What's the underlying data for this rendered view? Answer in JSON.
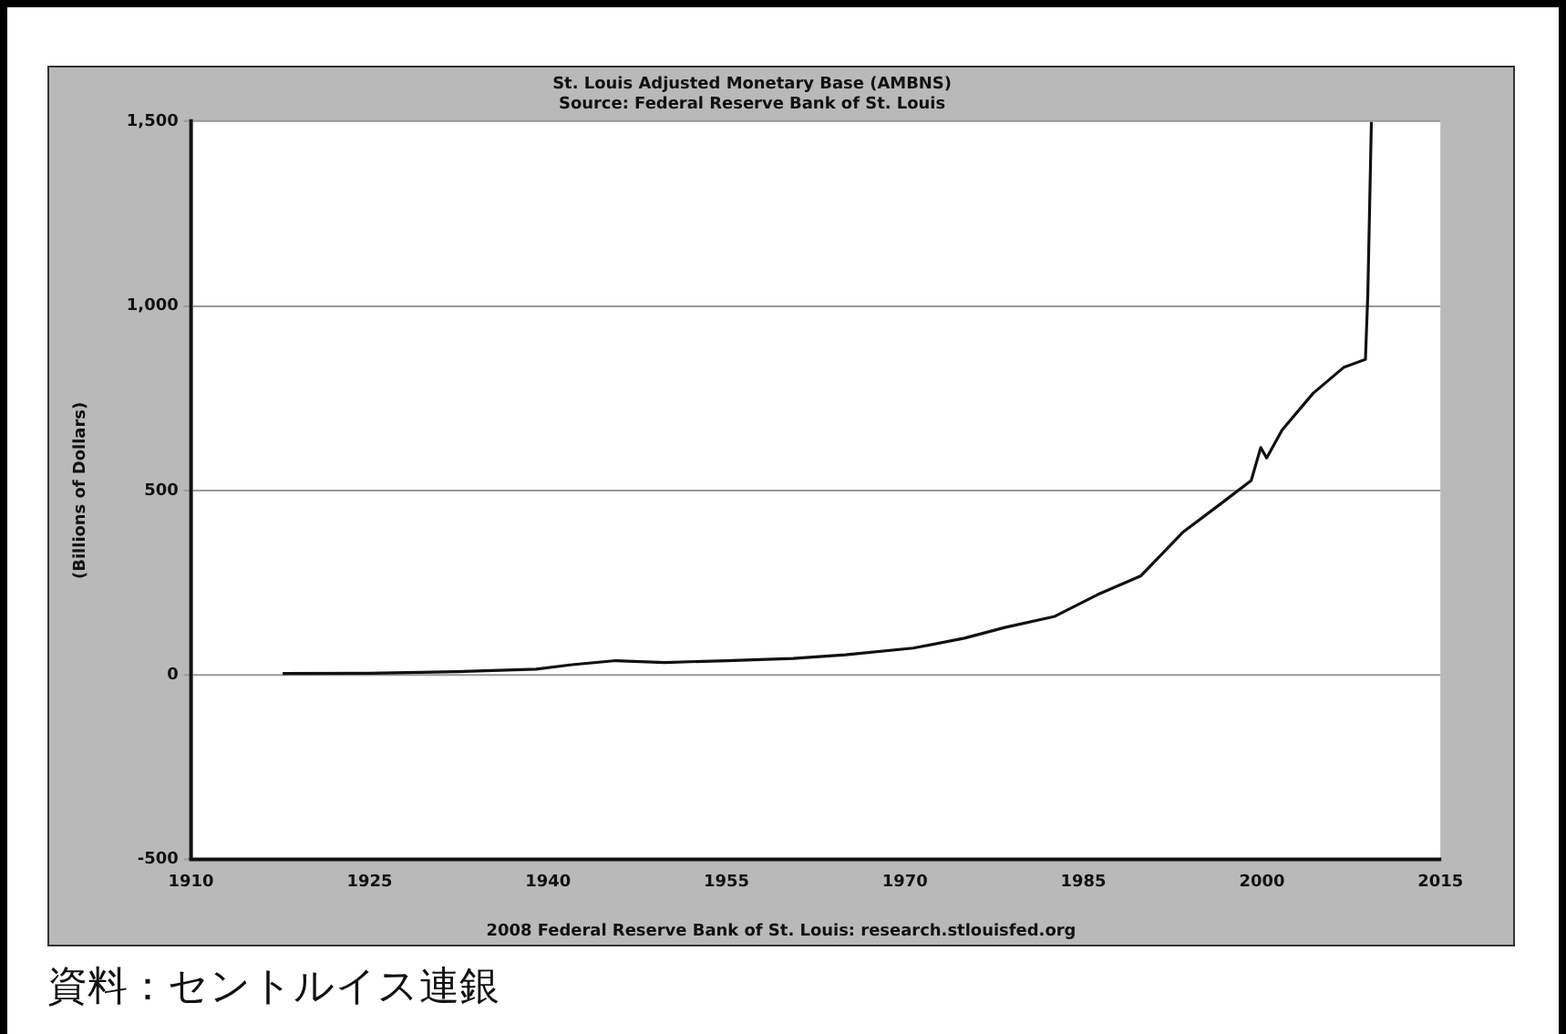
{
  "chart_data": {
    "type": "line",
    "title": "St. Louis Adjusted Monetary Base (AMBNS)",
    "subtitle": "Source: Federal Reserve Bank of St. Louis",
    "ylabel": "(Billions of Dollars)",
    "x": [
      1917.7,
      1925,
      1932.3,
      1939,
      1942,
      1945.7,
      1949.8,
      1955,
      1960.6,
      1965,
      1970.7,
      1975,
      1978.4,
      1982.6,
      1986.2,
      1989.8,
      1993.4,
      1996.5,
      1999.1,
      1999.9,
      2000.4,
      2001.7,
      2004.3,
      2006.9,
      2008.7,
      2008.9,
      2009.2
    ],
    "series": [
      {
        "color": "#111111",
        "values": [
          4,
          5,
          9,
          16,
          28,
          39,
          34,
          39,
          45,
          55,
          73,
          100,
          129,
          159,
          218,
          268,
          388,
          463,
          527,
          616,
          588,
          664,
          763,
          834,
          855,
          1030,
          1498
        ]
      }
    ],
    "xlim": [
      1910,
      2015
    ],
    "xticks": [
      1910,
      1925,
      1940,
      1955,
      1970,
      1985,
      2000,
      2015
    ],
    "ylim": [
      -500,
      1500
    ],
    "yticks": [
      -500,
      0,
      500,
      {
        "value": 1000,
        "label": "1,000"
      },
      {
        "value": 1500,
        "label": "1,500"
      }
    ],
    "grid": "y",
    "annotations": [
      "2008 Federal Reserve Bank of St. Louis: research.stlouisfed.org",
      "資料：セントルイス連銀"
    ]
  }
}
